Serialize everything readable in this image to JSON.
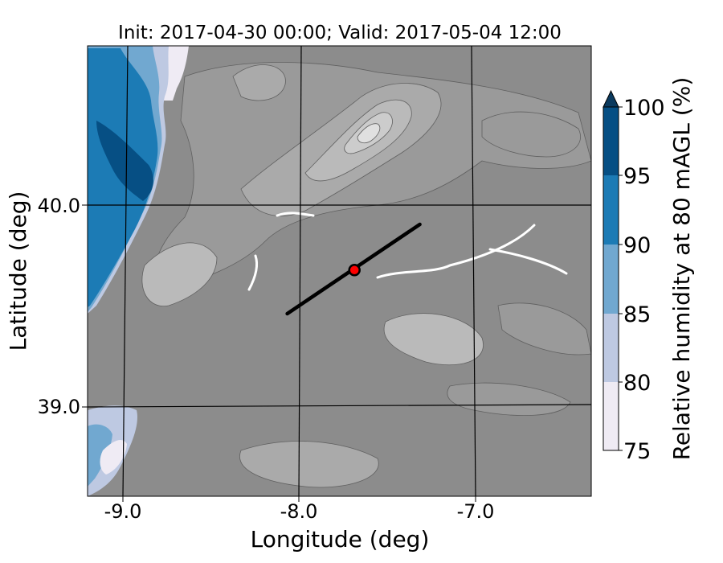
{
  "chart_data": {
    "type": "heatmap",
    "title": "Init: 2017-04-30 00:00; Valid: 2017-05-04 12:00",
    "xlabel": "Longitude (deg)",
    "ylabel": "Latitude (deg)",
    "xlim": [
      -9.25,
      -6.4
    ],
    "ylim": [
      38.55,
      40.82
    ],
    "x_ticks": [
      -9.0,
      -8.0,
      -7.0
    ],
    "x_tick_labels": [
      "-9.0",
      "-8.0",
      "-7.0"
    ],
    "y_ticks": [
      39.0,
      40.0
    ],
    "y_tick_labels": [
      "39.0",
      "40.0"
    ],
    "grid": true,
    "variable": "Relative humidity at 80 mAGL",
    "colorbar": {
      "label": "Relative humidity at 80 mAGL (%)",
      "position": "right",
      "ticks": [
        75,
        80,
        85,
        90,
        95,
        100
      ],
      "tick_labels": [
        "75",
        "80",
        "85",
        "90",
        "95",
        "100"
      ],
      "levels": [
        75,
        80,
        85,
        90,
        95,
        100
      ],
      "colors": [
        "#efebf4",
        "#bec9e2",
        "#71a8d0",
        "#1c7bb5",
        "#064f84"
      ],
      "extend": "max",
      "extend_color": "#0b3a5e"
    },
    "terrain_shading": {
      "colors": [
        "#8c8c8c",
        "#9a9a9a",
        "#aaaaaa",
        "#bababa",
        "#cccccc",
        "#e0e0e0",
        "#f2f2f2"
      ]
    },
    "transect": {
      "start": {
        "lon": -8.12,
        "lat": 39.47
      },
      "end": {
        "lon": -7.37,
        "lat": 39.92
      },
      "color": "#000000"
    },
    "site_marker": {
      "lon": -7.74,
      "lat": 39.69,
      "color": "#ff0000"
    }
  }
}
